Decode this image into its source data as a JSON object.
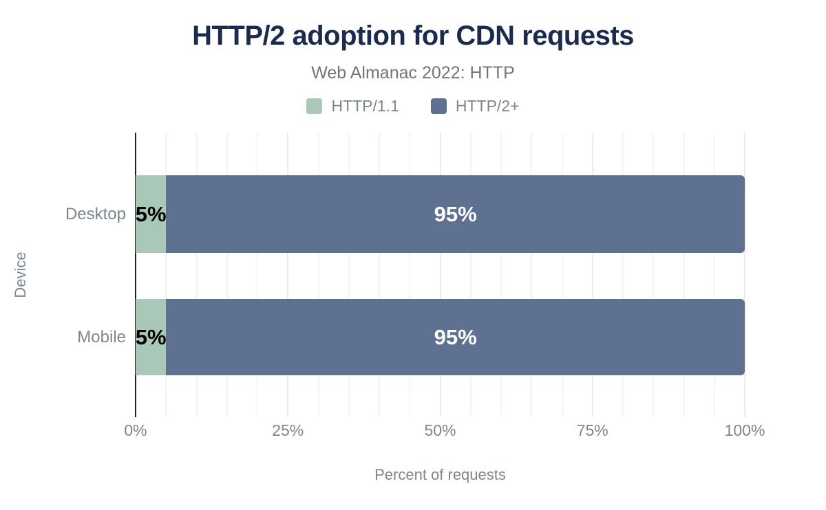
{
  "chart_data": {
    "type": "bar",
    "orientation": "horizontal",
    "stacked": true,
    "title": "HTTP/2 adoption for CDN requests",
    "subtitle": "Web Almanac 2022: HTTP",
    "xlabel": "Percent of requests",
    "ylabel": "Device",
    "categories": [
      "Desktop",
      "Mobile"
    ],
    "series": [
      {
        "name": "HTTP/1.1",
        "color": "#a9c8b7",
        "label_color": "#000000",
        "values": [
          5,
          5
        ]
      },
      {
        "name": "HTTP/2+",
        "color": "#5f7190",
        "label_color": "#ffffff",
        "values": [
          95,
          95
        ]
      }
    ],
    "value_suffix": "%",
    "xlim": [
      0,
      100
    ],
    "x_ticks": [
      0,
      25,
      50,
      75,
      100
    ],
    "x_tick_labels": [
      "0%",
      "25%",
      "50%",
      "75%",
      "100%"
    ],
    "minor_grid_step": 5,
    "major_grid_step": 25,
    "grid": "vertical",
    "legend_position": "top"
  },
  "colors": {
    "background": "#ffffff",
    "title": "#1b2b4b",
    "subtitle": "#757575",
    "axis_text": "#7d868e",
    "grid_minor": "#f4f4f4",
    "grid_major": "#ebebeb",
    "axis_line": "#202020"
  }
}
